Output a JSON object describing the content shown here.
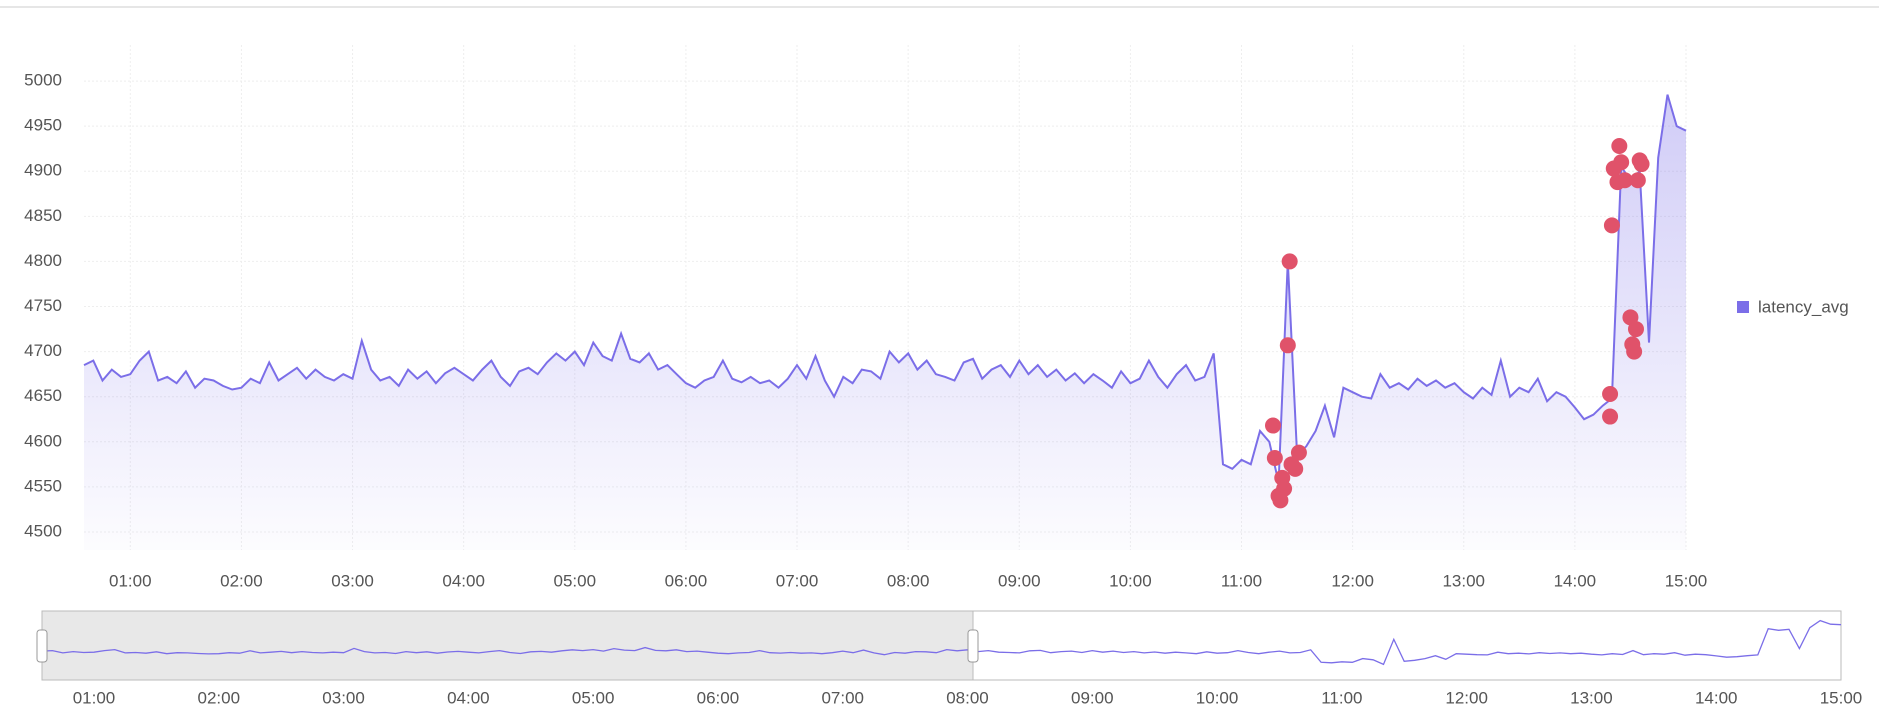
{
  "chart_data": {
    "type": "line",
    "x": [
      "00:35",
      "00:40",
      "00:45",
      "00:50",
      "00:55",
      "01:00",
      "01:05",
      "01:10",
      "01:15",
      "01:20",
      "01:25",
      "01:30",
      "01:35",
      "01:40",
      "01:45",
      "01:50",
      "01:55",
      "02:00",
      "02:05",
      "02:10",
      "02:15",
      "02:20",
      "02:25",
      "02:30",
      "02:35",
      "02:40",
      "02:45",
      "02:50",
      "02:55",
      "03:00",
      "03:05",
      "03:10",
      "03:15",
      "03:20",
      "03:25",
      "03:30",
      "03:35",
      "03:40",
      "03:45",
      "03:50",
      "03:55",
      "04:00",
      "04:05",
      "04:10",
      "04:15",
      "04:20",
      "04:25",
      "04:30",
      "04:35",
      "04:40",
      "04:45",
      "04:50",
      "04:55",
      "05:00",
      "05:05",
      "05:10",
      "05:15",
      "05:20",
      "05:25",
      "05:30",
      "05:35",
      "05:40",
      "05:45",
      "05:50",
      "05:55",
      "06:00",
      "06:05",
      "06:10",
      "06:15",
      "06:20",
      "06:25",
      "06:30",
      "06:35",
      "06:40",
      "06:45",
      "06:50",
      "06:55",
      "07:00",
      "07:05",
      "07:10",
      "07:15",
      "07:20",
      "07:25",
      "07:30",
      "07:35",
      "07:40",
      "07:45",
      "07:50",
      "07:55",
      "08:00",
      "08:05",
      "08:10",
      "08:15",
      "08:20",
      "08:25",
      "08:30",
      "08:35",
      "08:40",
      "08:45",
      "08:50",
      "08:55",
      "09:00",
      "09:05",
      "09:10",
      "09:15",
      "09:20",
      "09:25",
      "09:30",
      "09:35",
      "09:40",
      "09:45",
      "09:50",
      "09:55",
      "10:00",
      "10:05",
      "10:10",
      "10:15",
      "10:20",
      "10:25",
      "10:30",
      "10:35",
      "10:40",
      "10:45",
      "10:50",
      "10:55",
      "11:00",
      "11:05",
      "11:10",
      "11:15",
      "11:20",
      "11:25",
      "11:30",
      "11:35",
      "11:40",
      "11:45",
      "11:50",
      "11:55",
      "12:00",
      "12:05",
      "12:10",
      "12:15",
      "12:20",
      "12:25",
      "12:30",
      "12:35",
      "12:40",
      "12:45",
      "12:50",
      "12:55",
      "13:00",
      "13:05",
      "13:10",
      "13:15",
      "13:20",
      "13:25",
      "13:30",
      "13:35",
      "13:40",
      "13:45",
      "13:50",
      "13:55",
      "14:00",
      "14:05",
      "14:10",
      "14:15",
      "14:20",
      "14:25",
      "14:30",
      "14:35",
      "14:40",
      "14:45",
      "14:50",
      "14:55",
      "15:00"
    ],
    "series": [
      {
        "name": "latency_avg",
        "color": "#7b6ee8",
        "values": [
          4685,
          4690,
          4668,
          4680,
          4672,
          4675,
          4690,
          4700,
          4668,
          4672,
          4665,
          4678,
          4660,
          4670,
          4668,
          4662,
          4658,
          4660,
          4670,
          4665,
          4688,
          4668,
          4675,
          4682,
          4670,
          4680,
          4672,
          4668,
          4675,
          4670,
          4712,
          4680,
          4668,
          4672,
          4662,
          4680,
          4670,
          4678,
          4665,
          4676,
          4682,
          4675,
          4668,
          4680,
          4690,
          4672,
          4662,
          4678,
          4682,
          4675,
          4688,
          4698,
          4690,
          4700,
          4685,
          4710,
          4695,
          4690,
          4720,
          4692,
          4688,
          4698,
          4680,
          4685,
          4675,
          4665,
          4660,
          4668,
          4672,
          4690,
          4670,
          4666,
          4672,
          4665,
          4668,
          4660,
          4670,
          4685,
          4670,
          4695,
          4668,
          4650,
          4672,
          4665,
          4680,
          4678,
          4670,
          4700,
          4688,
          4698,
          4680,
          4690,
          4675,
          4672,
          4668,
          4688,
          4692,
          4670,
          4680,
          4685,
          4672,
          4690,
          4675,
          4685,
          4672,
          4680,
          4668,
          4676,
          4665,
          4675,
          4668,
          4660,
          4678,
          4665,
          4670,
          4690,
          4672,
          4660,
          4675,
          4685,
          4668,
          4672,
          4698,
          4575,
          4570,
          4580,
          4575,
          4612,
          4600,
          4555,
          4800,
          4585,
          4595,
          4612,
          4640,
          4605,
          4660,
          4655,
          4650,
          4648,
          4675,
          4660,
          4665,
          4658,
          4670,
          4662,
          4668,
          4660,
          4665,
          4655,
          4648,
          4660,
          4652,
          4690,
          4650,
          4660,
          4655,
          4670,
          4645,
          4655,
          4650,
          4638,
          4625,
          4630,
          4640,
          4648,
          4905,
          4890,
          4900,
          4710,
          4915,
          4985,
          4950,
          4945
        ]
      }
    ],
    "anomalies": {
      "color": "#e0526a",
      "x": [
        "11:17",
        "11:18",
        "11:20",
        "11:21",
        "11:22",
        "11:23",
        "11:25",
        "11:26",
        "11:27",
        "11:29",
        "11:31",
        "14:19",
        "14:19",
        "14:20",
        "14:21",
        "14:23",
        "14:24",
        "14:25",
        "14:27",
        "14:30",
        "14:31",
        "14:32",
        "14:33",
        "14:34",
        "14:35",
        "14:36"
      ],
      "values": [
        4618,
        4582,
        4540,
        4535,
        4560,
        4548,
        4707,
        4800,
        4575,
        4570,
        4588,
        4653,
        4628,
        4840,
        4903,
        4888,
        4928,
        4910,
        4890,
        4738,
        4708,
        4700,
        4725,
        4890,
        4912,
        4908
      ]
    },
    "xlim": [
      "00:35",
      "15:00"
    ],
    "xticks": [
      "01:00",
      "02:00",
      "03:00",
      "04:00",
      "05:00",
      "06:00",
      "07:00",
      "08:00",
      "09:00",
      "10:00",
      "11:00",
      "12:00",
      "13:00",
      "14:00",
      "15:00"
    ],
    "ylim": [
      4480,
      5040
    ],
    "yticks": [
      4500,
      4550,
      4600,
      4650,
      4700,
      4750,
      4800,
      4850,
      4900,
      4950,
      5000
    ],
    "grid": true,
    "legend": "right"
  }
}
